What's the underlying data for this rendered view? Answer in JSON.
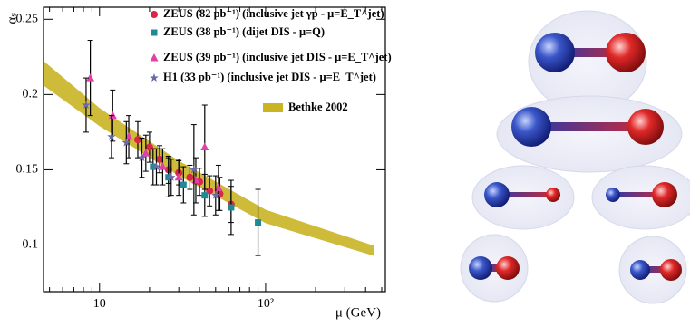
{
  "chart_data": {
    "type": "scatter",
    "xlabel": "μ (GeV)",
    "ylabel": "αₛ",
    "xscale": "log",
    "xlim": [
      4.6,
      526
    ],
    "ylim": [
      0.069,
      0.258
    ],
    "xticks": [
      10,
      {
        "value": 100,
        "label": "10²"
      }
    ],
    "yticks": [
      0.1,
      0.15,
      0.2,
      0.25
    ],
    "band": {
      "name": "Bethke 2002",
      "color": "#c9b423",
      "x": [
        4.6,
        10,
        30,
        100,
        450
      ],
      "lower": [
        0.206,
        0.179,
        0.146,
        0.1145,
        0.0928
      ],
      "upper": [
        0.2223,
        0.191,
        0.156,
        0.1235,
        0.0995
      ]
    },
    "series": [
      {
        "name": "ZEUS (82 pb⁻¹) (inclusive jet γp - μ=E_T^jet)",
        "color": "#d8284a",
        "marker": "circle",
        "x": [
          17,
          20,
          23,
          26,
          30,
          35,
          40,
          46,
          53,
          62
        ],
        "values": [
          0.17,
          0.165,
          0.157,
          0.15,
          0.148,
          0.145,
          0.142,
          0.136,
          0.134,
          0.127
        ],
        "errors": [
          0.012,
          0.01,
          0.009,
          0.009,
          0.008,
          0.008,
          0.009,
          0.01,
          0.011,
          0.012
        ]
      },
      {
        "name": "ZEUS (38 pb⁻¹) (dijet DIS - μ=Q)",
        "color": "#1f8a96",
        "marker": "square",
        "x": [
          21,
          26,
          32,
          43,
          62,
          90
        ],
        "values": [
          0.152,
          0.145,
          0.14,
          0.133,
          0.125,
          0.115
        ],
        "errors": [
          0.012,
          0.013,
          0.012,
          0.014,
          0.018,
          0.022
        ]
      },
      {
        "name": "ZEUS (39 pb⁻¹) (inclusive jet DIS - μ=E_T^jet)",
        "color": "#e040a8",
        "marker": "triangle",
        "x": [
          8.8,
          12,
          15,
          19,
          24,
          30,
          38,
          43,
          52
        ],
        "values": [
          0.211,
          0.186,
          0.172,
          0.161,
          0.152,
          0.145,
          0.143,
          0.165,
          0.138
        ],
        "errors": [
          0.025,
          0.017,
          0.014,
          0.012,
          0.012,
          0.012,
          0.015,
          0.028,
          0.015
        ]
      },
      {
        "name": "H1      (33 pb⁻¹) (inclusive jet DIS - μ=E_T^jet)",
        "color": "#6a6aa8",
        "marker": "star",
        "x": [
          8.3,
          11.8,
          14.5,
          18,
          22,
          27,
          37,
          50
        ],
        "values": [
          0.193,
          0.172,
          0.168,
          0.158,
          0.152,
          0.145,
          0.15,
          0.133
        ],
        "errors": [
          0.018,
          0.014,
          0.014,
          0.013,
          0.012,
          0.012,
          0.03,
          0.013
        ]
      }
    ]
  }
}
